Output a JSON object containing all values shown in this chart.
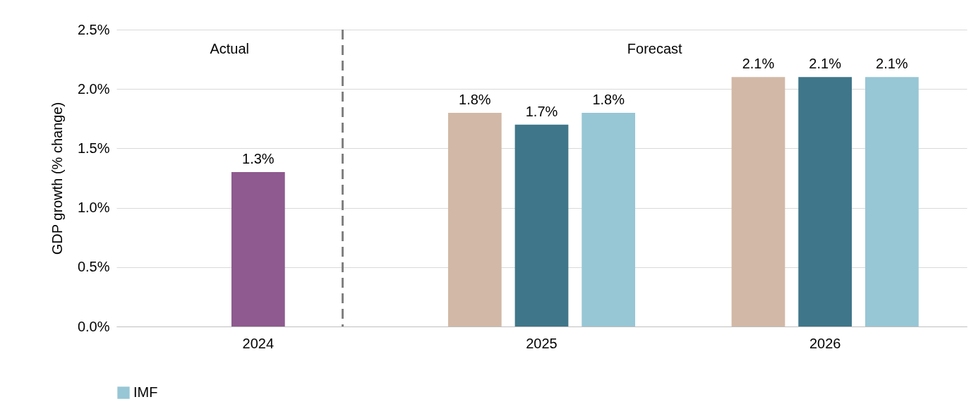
{
  "chart_data": {
    "type": "bar",
    "ylabel": "GDP growth (% change)",
    "categories": [
      "2024",
      "2025",
      "2026"
    ],
    "series": [
      {
        "color": "#d2b8a6",
        "values": [
          null,
          1.8,
          2.1
        ],
        "value_labels": [
          null,
          "1.8%",
          "2.1%"
        ]
      },
      {
        "colors": [
          "#8e5a8f",
          "#3f7689",
          "#3f7689"
        ],
        "values": [
          1.3,
          1.7,
          2.1
        ],
        "value_labels": [
          "1.3%",
          "1.7%",
          "2.1%"
        ]
      },
      {
        "name": "IMF",
        "color": "#97c6d5",
        "values": [
          null,
          1.8,
          2.1
        ],
        "value_labels": [
          null,
          "1.8%",
          "2.1%"
        ]
      }
    ],
    "ylim": [
      0,
      2.5
    ],
    "yticks": [
      {
        "value": 0,
        "label": "0.0%"
      },
      {
        "value": 0.5,
        "label": "0.5%"
      },
      {
        "value": 1,
        "label": "1.0%"
      },
      {
        "value": 1.5,
        "label": "1.5%"
      },
      {
        "value": 2,
        "label": "2.0%"
      },
      {
        "value": 2.5,
        "label": "2.5%"
      }
    ],
    "grid": "y",
    "legend": "bottom",
    "annotations": [
      "Actual",
      "Forecast"
    ]
  }
}
